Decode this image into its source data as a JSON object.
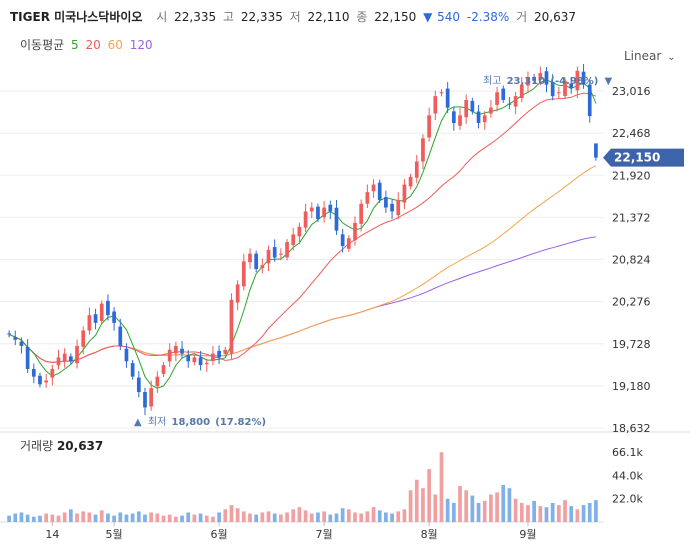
{
  "quote": {
    "name": "TIGER 미국나스닥바이오",
    "open_label": "시",
    "open": "22,335",
    "high_label": "고",
    "high": "22,335",
    "low_label": "저",
    "low": "22,110",
    "close_label": "종",
    "close": "22,150",
    "change_arrow": "▼",
    "change": "540",
    "change_pct": "-2.38%",
    "volume_label": "거",
    "volume": "20,637"
  },
  "ma_legend": {
    "label": "이동평균",
    "items": [
      {
        "period": "5",
        "color": "#2ca52c"
      },
      {
        "period": "20",
        "color": "#f05b5b"
      },
      {
        "period": "60",
        "color": "#f7a348"
      },
      {
        "period": "120",
        "color": "#9a62e6"
      }
    ]
  },
  "scale": {
    "label": "Linear"
  },
  "price_axis": {
    "ticks": [
      "23,016",
      "22,468",
      "21,920",
      "21,372",
      "20,824",
      "20,276",
      "19,728",
      "19,180",
      "18,632"
    ]
  },
  "current_price_label": "22,150",
  "max_annotation": {
    "label": "최고",
    "value": "23,310",
    "pct": "(-4.98%)",
    "arrow": "▼"
  },
  "min_annotation": {
    "label": "최저",
    "value": "18,800",
    "pct": "(17.82%)",
    "arrow": "▲"
  },
  "volume_panel": {
    "title": "거래량",
    "value": "20,637",
    "ticks": [
      "66.1k",
      "44.0k",
      "22.0k"
    ]
  },
  "x_axis": {
    "labels": [
      "14",
      "5월",
      "6월",
      "7월",
      "8월",
      "9월"
    ]
  },
  "colors": {
    "up": "#f05b5b",
    "down": "#2c6ad8",
    "vol_up": "#f0a0a0",
    "vol_down": "#7fb0e8",
    "price_tag": "#3d64a8"
  },
  "chart_data": {
    "type": "candlestick",
    "price_range": [
      18632,
      23316
    ],
    "volume_range": [
      0,
      70000
    ],
    "x_labels": [
      "14",
      "5월",
      "6월",
      "7월",
      "8월",
      "9월"
    ],
    "series_ma": [
      "MA5",
      "MA20",
      "MA60",
      "MA120"
    ],
    "closes": [
      19850,
      19780,
      19700,
      19400,
      19300,
      19200,
      19250,
      19400,
      19550,
      19600,
      19500,
      19700,
      19900,
      20100,
      20000,
      20250,
      20100,
      20000,
      19700,
      19500,
      19300,
      19100,
      18900,
      19150,
      19300,
      19450,
      19650,
      19700,
      19600,
      19500,
      19550,
      19450,
      19480,
      19600,
      19550,
      19650,
      20300,
      20500,
      20800,
      20900,
      20700,
      20750,
      20950,
      20850,
      20900,
      21050,
      21150,
      21250,
      21450,
      21500,
      21350,
      21500,
      21450,
      21200,
      21000,
      21100,
      21300,
      21550,
      21700,
      21800,
      21600,
      21500,
      21450,
      21600,
      21800,
      21900,
      22100,
      22400,
      22700,
      22950,
      23000,
      22800,
      22600,
      22700,
      22900,
      22750,
      22600,
      22700,
      22800,
      23000,
      22900,
      22850,
      22950,
      23100,
      23200,
      23150,
      23250,
      23100,
      22950,
      23000,
      23150,
      23050,
      23280,
      23100,
      22690,
      22150
    ],
    "volumes": [
      6000,
      8000,
      9000,
      7000,
      5000,
      6000,
      8000,
      7000,
      6000,
      9000,
      12000,
      8000,
      10000,
      9000,
      7000,
      11000,
      8000,
      6000,
      9000,
      7000,
      8000,
      10000,
      7000,
      9000,
      8000,
      6000,
      7000,
      5000,
      6000,
      9000,
      7000,
      8000,
      6000,
      5000,
      9000,
      12000,
      16000,
      13000,
      10000,
      8000,
      7000,
      9000,
      10000,
      8000,
      7000,
      9000,
      12000,
      14000,
      11000,
      8000,
      9000,
      10000,
      7000,
      8000,
      13000,
      12000,
      9000,
      8000,
      10000,
      14000,
      11000,
      9000,
      8000,
      10000,
      12000,
      30000,
      40000,
      32000,
      50000,
      26000,
      66000,
      22000,
      18000,
      34000,
      30000,
      25000,
      18000,
      20000,
      26000,
      28000,
      35000,
      32000,
      22000,
      18000,
      16000,
      20000,
      15000,
      14000,
      18000,
      16000,
      20637,
      15000,
      12000,
      16000,
      18000,
      20637
    ]
  }
}
